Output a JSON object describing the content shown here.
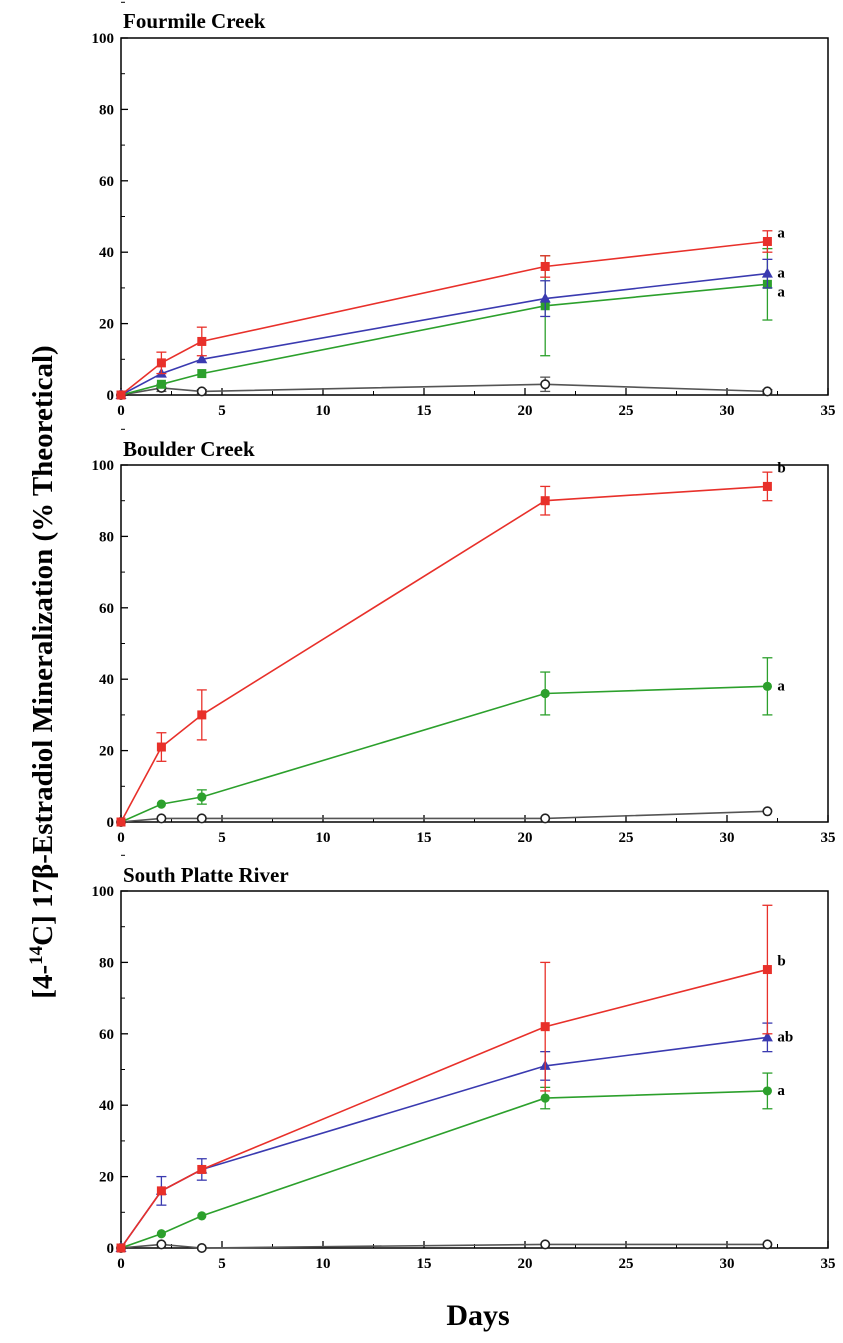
{
  "figure": {
    "ylabel": {
      "pre": "[4-",
      "sup": "14",
      "post": "C] 17β-Estradiol Mineralization (% Theoretical)"
    },
    "xlabel": "Days"
  },
  "chart_data": [
    {
      "type": "line",
      "title": "Fourmile Creek",
      "xlim": [
        0,
        35
      ],
      "ylim": [
        0,
        100
      ],
      "xticks": [
        "0",
        "5",
        "10",
        "15",
        "20",
        "25",
        "30",
        "35"
      ],
      "yticks": [
        "0",
        "20",
        "40",
        "60",
        "80",
        "100"
      ],
      "series": [
        {
          "color": "#555555",
          "marker": "open-circle",
          "x": [
            0,
            2,
            4,
            21,
            32
          ],
          "y": [
            0,
            2,
            1,
            3,
            1
          ],
          "err": [
            0,
            1,
            0.5,
            2,
            0.5
          ]
        },
        {
          "color": "#2ca02c",
          "marker": "square",
          "x": [
            0,
            2,
            4,
            21,
            32
          ],
          "y": [
            0,
            3,
            6,
            25,
            31
          ],
          "err": [
            0,
            0,
            0,
            14,
            10
          ]
        },
        {
          "color": "#3a3ab0",
          "marker": "triangle",
          "x": [
            0,
            2,
            4,
            21,
            32
          ],
          "y": [
            0,
            6,
            10,
            27,
            34
          ],
          "err": [
            0,
            0,
            0,
            5,
            4
          ]
        },
        {
          "color": "#e8302a",
          "marker": "square",
          "x": [
            0,
            2,
            4,
            21,
            32
          ],
          "y": [
            0,
            9,
            15,
            36,
            43
          ],
          "err": [
            0,
            3,
            4,
            3,
            3
          ]
        }
      ],
      "annotations": [
        "a",
        "a",
        "a"
      ]
    },
    {
      "type": "line",
      "title": "Boulder Creek",
      "xlim": [
        0,
        35
      ],
      "ylim": [
        0,
        100
      ],
      "xticks": [
        "0",
        "5",
        "10",
        "15",
        "20",
        "25",
        "30",
        "35"
      ],
      "yticks": [
        "0",
        "20",
        "40",
        "60",
        "80",
        "100"
      ],
      "series": [
        {
          "color": "#555555",
          "marker": "open-circle",
          "x": [
            0,
            2,
            4,
            21,
            32
          ],
          "y": [
            0,
            1,
            1,
            1,
            3
          ],
          "err": [
            0,
            0,
            0,
            0,
            0
          ]
        },
        {
          "color": "#2ca02c",
          "marker": "circle",
          "x": [
            0,
            2,
            4,
            21,
            32
          ],
          "y": [
            0,
            5,
            7,
            36,
            38
          ],
          "err": [
            0,
            0,
            2,
            6,
            8
          ]
        },
        {
          "color": "#e8302a",
          "marker": "square",
          "x": [
            0,
            2,
            4,
            21,
            32
          ],
          "y": [
            0,
            21,
            30,
            90,
            94
          ],
          "err": [
            0,
            4,
            7,
            4,
            4
          ]
        }
      ],
      "annotations": [
        "b",
        "a"
      ]
    },
    {
      "type": "line",
      "title": "South Platte River",
      "xlim": [
        0,
        35
      ],
      "ylim": [
        0,
        100
      ],
      "xticks": [
        "0",
        "5",
        "10",
        "15",
        "20",
        "25",
        "30",
        "35"
      ],
      "yticks": [
        "0",
        "20",
        "40",
        "60",
        "80",
        "100"
      ],
      "series": [
        {
          "color": "#555555",
          "marker": "open-circle",
          "x": [
            0,
            2,
            4,
            21,
            32
          ],
          "y": [
            0,
            1,
            0,
            1,
            1
          ],
          "err": [
            0,
            0,
            0,
            0,
            0
          ]
        },
        {
          "color": "#2ca02c",
          "marker": "circle",
          "x": [
            0,
            2,
            4,
            21,
            32
          ],
          "y": [
            0,
            4,
            9,
            42,
            44
          ],
          "err": [
            0,
            0,
            0,
            3,
            5
          ]
        },
        {
          "color": "#3a3ab0",
          "marker": "triangle",
          "x": [
            0,
            2,
            4,
            21,
            32
          ],
          "y": [
            0,
            16,
            22,
            51,
            59
          ],
          "err": [
            0,
            4,
            3,
            4,
            4
          ]
        },
        {
          "color": "#e8302a",
          "marker": "square",
          "x": [
            0,
            2,
            4,
            21,
            32
          ],
          "y": [
            0,
            16,
            22,
            62,
            78
          ],
          "err": [
            0,
            0,
            0,
            18,
            18
          ]
        }
      ],
      "annotations": [
        "b",
        "ab",
        "a"
      ]
    }
  ]
}
